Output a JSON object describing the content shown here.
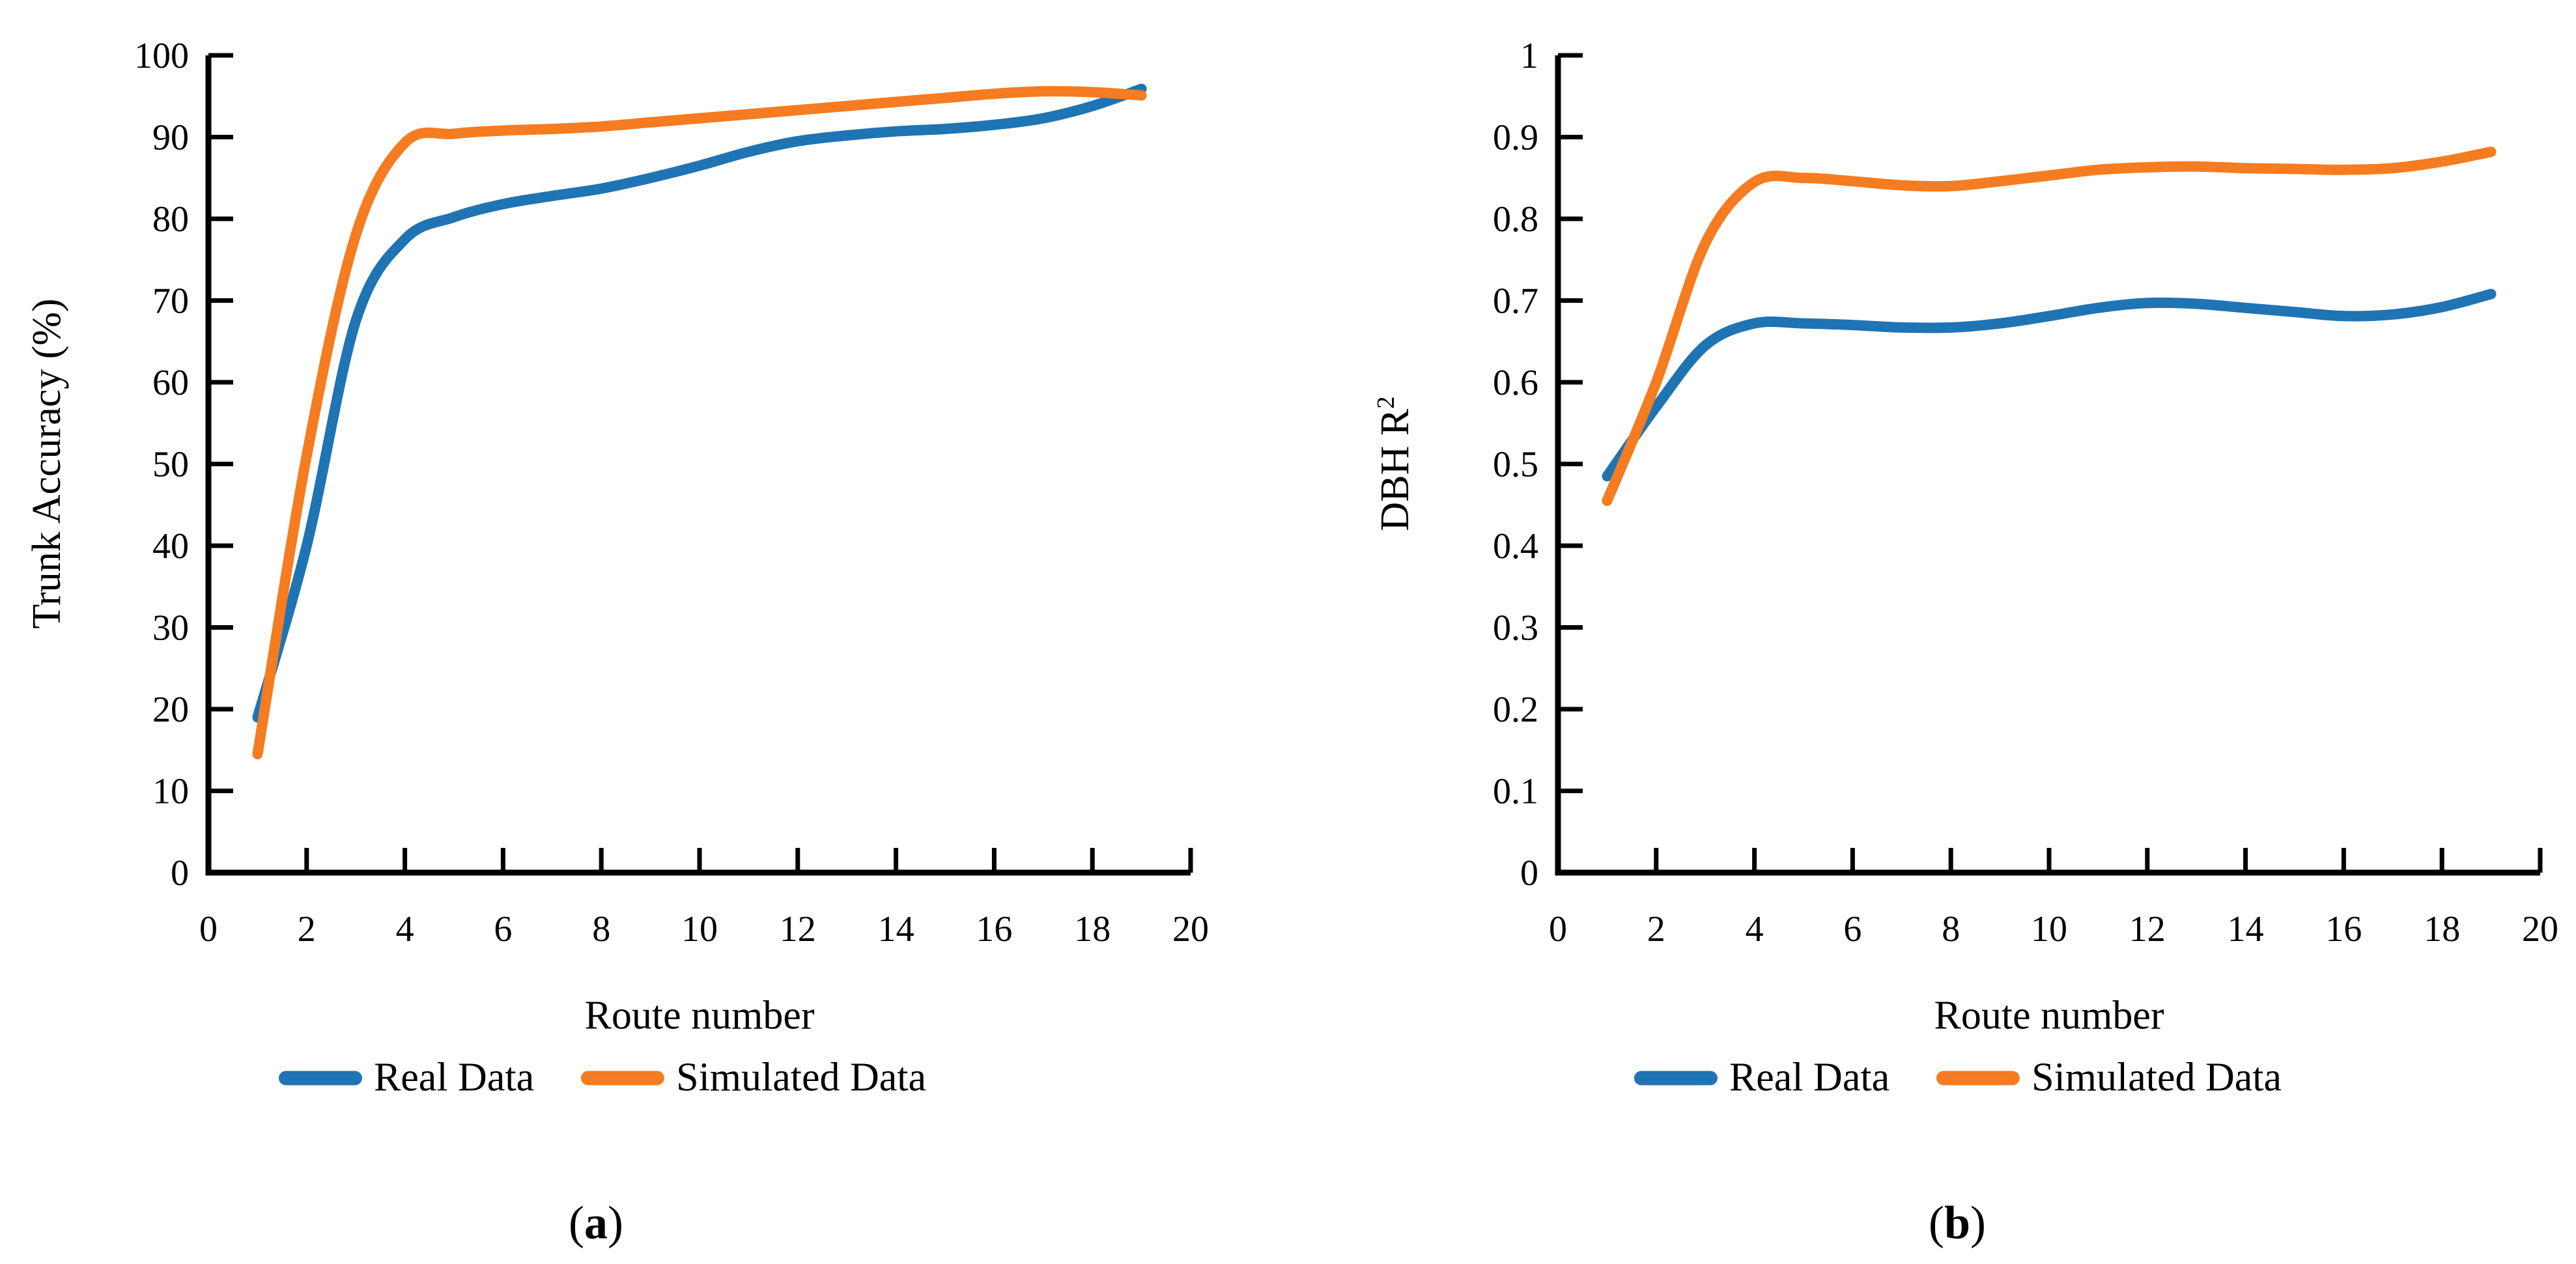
{
  "figure": {
    "background": "#FFFFFF",
    "legend": {
      "real_label": "Real Data",
      "simulated_label": "Simulated Data"
    },
    "colors": {
      "real_line": "#1F74B4",
      "simulated_line": "#F57C20",
      "axis": "#000000",
      "text": "#000000"
    }
  },
  "chart_data": [
    {
      "type": "line",
      "panel": "a",
      "caption_open": "(",
      "caption_letter": "a",
      "caption_close": ")",
      "title": "",
      "xlabel": "Route number",
      "ylabel": "Trunk Accuracy (%)",
      "ylabel_superscript": "",
      "xlim": [
        0,
        20
      ],
      "ylim": [
        0,
        100
      ],
      "grid": false,
      "legend_position": "bottom",
      "x_tick_labels": [
        "0",
        "2",
        "4",
        "6",
        "8",
        "10",
        "12",
        "14",
        "16",
        "18",
        "20"
      ],
      "y_tick_labels": [
        "0",
        "10",
        "20",
        "30",
        "40",
        "50",
        "60",
        "70",
        "80",
        "90",
        "100"
      ],
      "x": [
        1,
        2,
        3,
        4,
        5,
        6,
        7,
        8,
        9,
        10,
        11,
        12,
        13,
        14,
        15,
        16,
        17,
        18,
        19
      ],
      "series": [
        {
          "name": "Real Data",
          "color_key": "real_line",
          "values": [
            19,
            40,
            67.5,
            77.5,
            80.2,
            81.8,
            82.8,
            83.7,
            85,
            86.5,
            88.2,
            89.5,
            90.2,
            90.7,
            91,
            91.5,
            92.3,
            93.8,
            95.9
          ]
        },
        {
          "name": "Simulated Data",
          "color_key": "simulated_line",
          "values": [
            14.5,
            51,
            78,
            89.3,
            90.4,
            90.8,
            91,
            91.3,
            91.8,
            92.3,
            92.8,
            93.3,
            93.8,
            94.3,
            94.8,
            95.3,
            95.6,
            95.5,
            95.1
          ]
        }
      ]
    },
    {
      "type": "line",
      "panel": "b",
      "caption_open": "(",
      "caption_letter": "b",
      "caption_close": ")",
      "title": "",
      "xlabel": "Route number",
      "ylabel": "DBH R",
      "ylabel_superscript": "2",
      "xlim": [
        0,
        20
      ],
      "ylim": [
        0,
        1
      ],
      "grid": false,
      "legend_position": "bottom",
      "x_tick_labels": [
        "0",
        "2",
        "4",
        "6",
        "8",
        "10",
        "12",
        "14",
        "16",
        "18",
        "20"
      ],
      "y_tick_labels": [
        "0",
        "0.1",
        "0.2",
        "0.3",
        "0.4",
        "0.5",
        "0.6",
        "0.7",
        "0.8",
        "0.9",
        "1"
      ],
      "x": [
        1,
        2,
        3,
        4,
        5,
        6,
        7,
        8,
        9,
        10,
        11,
        12,
        13,
        14,
        15,
        16,
        17,
        18,
        19
      ],
      "series": [
        {
          "name": "Real Data",
          "color_key": "real_line",
          "values": [
            0.485,
            0.57,
            0.645,
            0.672,
            0.672,
            0.67,
            0.667,
            0.667,
            0.672,
            0.681,
            0.691,
            0.697,
            0.696,
            0.691,
            0.686,
            0.681,
            0.683,
            0.692,
            0.708
          ]
        },
        {
          "name": "Simulated Data",
          "color_key": "simulated_line",
          "values": [
            0.455,
            0.6,
            0.77,
            0.845,
            0.85,
            0.846,
            0.841,
            0.84,
            0.846,
            0.853,
            0.86,
            0.863,
            0.864,
            0.862,
            0.861,
            0.86,
            0.862,
            0.87,
            0.882
          ]
        }
      ]
    }
  ]
}
